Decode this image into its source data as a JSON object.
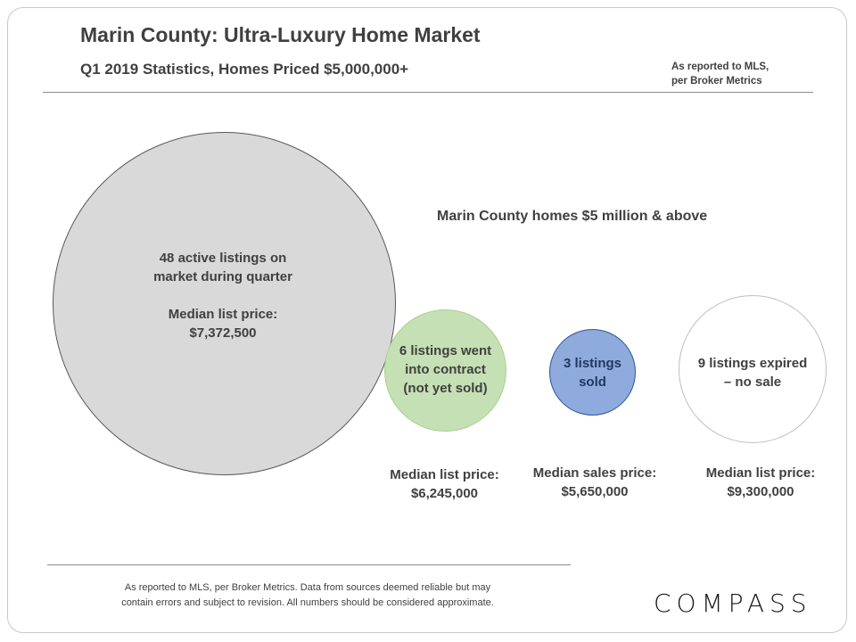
{
  "header": {
    "title": "Marin County: Ultra-Luxury Home Market",
    "subtitle": "Q1 2019 Statistics,  Homes Priced $5,000,000+",
    "source_line1": "As reported to MLS,",
    "source_line2": "per Broker Metrics"
  },
  "annotation": "Marin County homes $5 million & above",
  "chart_data": {
    "type": "bubble",
    "title": "Marin County: Ultra-Luxury Home Market",
    "series": [
      {
        "key": "active",
        "value": 48,
        "lines": [
          "48 active listings on",
          "market during quarter"
        ],
        "price_label": "Median list price:",
        "price": "$7,372,500",
        "color": "#d9d9d9"
      },
      {
        "key": "contract",
        "value": 6,
        "lines": [
          "6 listings went",
          "into contract",
          "(not yet sold)"
        ],
        "price_label": "Median list price:",
        "price": "$6,245,000",
        "color": "#c5e0b4"
      },
      {
        "key": "sold",
        "value": 3,
        "lines": [
          "3 listings",
          "sold"
        ],
        "price_label": "Median sales price:",
        "price": "$5,650,000",
        "color": "#8faadc"
      },
      {
        "key": "expired",
        "value": 9,
        "lines": [
          "9 listings expired",
          "– no sale"
        ],
        "price_label": "Median list price:",
        "price": "$9,300,000",
        "color": "#ffffff"
      }
    ]
  },
  "footer": {
    "note_line1": "As reported to MLS, per Broker Metrics. Data from sources deemed  reliable but may",
    "note_line2": "contain errors and subject to revision. All numbers should be considered approximate.",
    "logo": "COMPASS"
  }
}
